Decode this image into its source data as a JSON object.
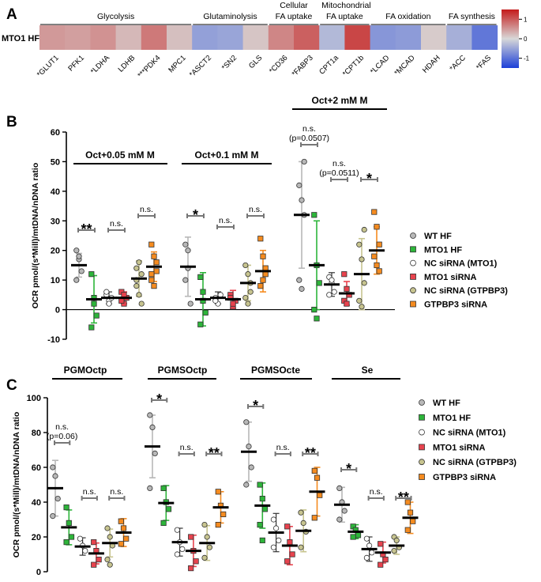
{
  "chart_data": [
    {
      "panel": "A",
      "type": "heatmap",
      "row_label": "MTO1 HF",
      "groups": [
        {
          "label": "Glycolysis",
          "genes": 6
        },
        {
          "label": "Glutaminolysis",
          "genes": 3
        },
        {
          "label": "Cellular FA uptake",
          "genes": 2
        },
        {
          "label": "Mitochondrial FA uptake",
          "genes": 2
        },
        {
          "label": "FA oxidation",
          "genes": 3
        },
        {
          "label": "FA synthesis",
          "genes": 2
        }
      ],
      "genes": [
        "*GLUT1",
        "PFK1",
        "*LDHA",
        "LDHB",
        "***PDK4",
        "MPC1",
        "*ASCT2",
        "*SN2",
        "GLS",
        "*CD36",
        "*FABP3",
        "CPT1a",
        "*CPT1b",
        "*LCAD",
        "*MCAD",
        "HDAH",
        "*ACC",
        "*FAS"
      ],
      "values": [
        0.5,
        0.45,
        0.55,
        0.25,
        0.75,
        0.2,
        -0.55,
        -0.5,
        0.15,
        0.65,
        0.95,
        -0.3,
        1.15,
        -0.65,
        -0.6,
        0.1,
        -0.4,
        -0.95
      ],
      "colorbar": {
        "range": [
          -1.5,
          1.5
        ],
        "ticks": [
          1,
          0,
          -1
        ]
      }
    },
    {
      "panel": "B",
      "type": "scatter",
      "ylabel": "OCR pmol/(s*Mill)/mtDNA/nDNA ratio",
      "ylim": [
        -10,
        60
      ],
      "yticks": [
        -10,
        0,
        10,
        20,
        30,
        40,
        50,
        60
      ],
      "conditions": [
        "Oct+0.05 mM M",
        "Oct+0.1 mM M",
        "Oct+2 mM M"
      ],
      "legend": [
        "WT HF",
        "MTO1 HF",
        "NC siRNA (MTO1)",
        "MTO1 siRNA",
        "NC siRNA (GTPBP3)",
        "GTPBP3 siRNA"
      ],
      "comparisons": [
        [
          "**",
          "n.s.",
          "n.s."
        ],
        [
          "*",
          "n.s.",
          "n.s."
        ],
        [
          "n.s.\n(p=0.0507)",
          "n.s.\n(p=0.0511)",
          "*"
        ]
      ],
      "series": [
        [
          {
            "name": "WT HF",
            "values": [
              20,
              17,
              13,
              10,
              18
            ],
            "mean": 15,
            "sd": 4
          },
          {
            "name": "MTO1 HF",
            "values": [
              12,
              2,
              -2,
              -6,
              4
            ],
            "mean": 3.5,
            "sd": 8
          },
          {
            "name": "NC siRNA (MTO1)",
            "values": [
              5,
              3,
              4,
              6,
              2
            ],
            "mean": 4,
            "sd": 2
          },
          {
            "name": "MTO1 siRNA",
            "values": [
              6,
              2,
              4,
              3,
              5
            ],
            "mean": 4,
            "sd": 2
          },
          {
            "name": "NC siRNA (GTPBP3)",
            "values": [
              14,
              16,
              12,
              8,
              5,
              2,
              10
            ],
            "mean": 10.5,
            "sd": 6
          },
          {
            "name": "GTPBP3 siRNA",
            "values": [
              22,
              18,
              13,
              10,
              8,
              16,
              12
            ],
            "mean": 14.5,
            "sd": 5
          }
        ],
        [
          {
            "name": "WT HF",
            "values": [
              22,
              14,
              2,
              10,
              20
            ],
            "mean": 14.5,
            "sd": 10
          },
          {
            "name": "MTO1 HF",
            "values": [
              11,
              3,
              -1,
              -5,
              6
            ],
            "mean": 3.5,
            "sd": 9
          },
          {
            "name": "NC siRNA (MTO1)",
            "values": [
              4,
              2,
              5,
              3
            ],
            "mean": 4,
            "sd": 2
          },
          {
            "name": "MTO1 siRNA",
            "values": [
              5,
              1,
              3,
              4,
              2
            ],
            "mean": 3.5,
            "sd": 3
          },
          {
            "name": "NC siRNA (GTPBP3)",
            "values": [
              15,
              12,
              9,
              4,
              2,
              6
            ],
            "mean": 9,
            "sd": 6
          },
          {
            "name": "GTPBP3 siRNA",
            "values": [
              24,
              18,
              14,
              8,
              10,
              12
            ],
            "mean": 13,
            "sd": 7
          }
        ],
        [
          {
            "name": "WT HF",
            "values": [
              42,
              37,
              32,
              10,
              7,
              50
            ],
            "mean": 32,
            "sd": 18
          },
          {
            "name": "MTO1 HF",
            "values": [
              32,
              15,
              9,
              0,
              -3
            ],
            "mean": 15,
            "sd": 15
          },
          {
            "name": "NC siRNA (MTO1)",
            "values": [
              11,
              9,
              6,
              5,
              10
            ],
            "mean": 8.5,
            "sd": 4
          },
          {
            "name": "MTO1 siRNA",
            "values": [
              12,
              7,
              5,
              3,
              2
            ],
            "mean": 5.5,
            "sd": 4
          },
          {
            "name": "NC siRNA (GTPBP3)",
            "values": [
              22,
              17,
              9,
              3,
              1,
              27
            ],
            "mean": 12,
            "sd": 12
          },
          {
            "name": "GTPBP3 siRNA",
            "values": [
              33,
              28,
              22,
              18,
              15,
              13
            ],
            "mean": 20,
            "sd": 8
          }
        ]
      ]
    },
    {
      "panel": "C",
      "type": "scatter",
      "ylabel": "OCR pmol/(s*Mill)/mtDNA/nDNA ratio",
      "ylim": [
        0,
        100
      ],
      "yticks": [
        0,
        20,
        40,
        60,
        80,
        100
      ],
      "conditions": [
        "PGMOctp",
        "PGMSOctp",
        "PGMSOcte",
        "Se"
      ],
      "legend": [
        "WT HF",
        "MTO1 HF",
        "NC siRNA (MTO1)",
        "MTO1 siRNA",
        "NC siRNA (GTPBP3)",
        "GTPBP3 siRNA"
      ],
      "comparisons": [
        [
          "n.s.\n(p=0.06)",
          "n.s.",
          "n.s."
        ],
        [
          "*",
          "n.s.",
          "**"
        ],
        [
          "*",
          "n.s.",
          "**"
        ],
        [
          "*",
          "n.s.",
          "**"
        ]
      ],
      "series": [
        [
          {
            "name": "WT HF",
            "values": [
              60,
              55,
              42,
              32
            ],
            "mean": 48,
            "sd": 16
          },
          {
            "name": "MTO1 HF",
            "values": [
              37,
              28,
              20,
              17
            ],
            "mean": 25.5,
            "sd": 10
          },
          {
            "name": "NC siRNA (MTO1)",
            "values": [
              19,
              15,
              12
            ],
            "mean": 14.5,
            "sd": 5
          },
          {
            "name": "MTO1 siRNA",
            "values": [
              17,
              12,
              7,
              4
            ],
            "mean": 10.5,
            "sd": 6
          },
          {
            "name": "NC siRNA (GTPBP3)",
            "values": [
              25,
              20,
              15,
              7,
              4
            ],
            "mean": 16.5,
            "sd": 8
          },
          {
            "name": "GTPBP3 siRNA",
            "values": [
              29,
              25,
              19,
              16
            ],
            "mean": 22.5,
            "sd": 8
          }
        ],
        [
          {
            "name": "WT HF",
            "values": [
              90,
              83,
              68,
              48
            ],
            "mean": 72,
            "sd": 18
          },
          {
            "name": "MTO1 HF",
            "values": [
              48,
              40,
              36,
              28
            ],
            "mean": 39.5,
            "sd": 10
          },
          {
            "name": "NC siRNA (MTO1)",
            "values": [
              24,
              17,
              13,
              10
            ],
            "mean": 17,
            "sd": 8
          },
          {
            "name": "MTO1 siRNA",
            "values": [
              20,
              12,
              6,
              2
            ],
            "mean": 12,
            "sd": 9
          },
          {
            "name": "NC siRNA (GTPBP3)",
            "values": [
              27,
              20,
              14,
              8
            ],
            "mean": 16.5,
            "sd": 10
          },
          {
            "name": "GTPBP3 siRNA",
            "values": [
              46,
              38,
              33,
              27
            ],
            "mean": 37,
            "sd": 9
          }
        ],
        [
          {
            "name": "WT HF",
            "values": [
              86,
              72,
              60,
              50
            ],
            "mean": 69,
            "sd": 17
          },
          {
            "name": "MTO1 HF",
            "values": [
              50,
              42,
              36,
              27,
              18
            ],
            "mean": 38,
            "sd": 13
          },
          {
            "name": "NC siRNA (MTO1)",
            "values": [
              30,
              25,
              18,
              14
            ],
            "mean": 22.5,
            "sd": 11
          },
          {
            "name": "MTO1 siRNA",
            "values": [
              26,
              17,
              10,
              6
            ],
            "mean": 15,
            "sd": 11
          },
          {
            "name": "NC siRNA (GTPBP3)",
            "values": [
              34,
              28,
              23,
              14
            ],
            "mean": 23.5,
            "sd": 12
          },
          {
            "name": "GTPBP3 siRNA",
            "values": [
              58,
              54,
              44,
              31
            ],
            "mean": 46,
            "sd": 14
          }
        ],
        [
          {
            "name": "WT HF",
            "values": [
              48,
              40,
              35,
              30
            ],
            "mean": 38.5,
            "sd": 10
          },
          {
            "name": "MTO1 HF",
            "values": [
              26,
              24,
              21,
              20
            ],
            "mean": 23,
            "sd": 4
          },
          {
            "name": "NC siRNA (MTO1)",
            "values": [
              19,
              15,
              11,
              8
            ],
            "mean": 13,
            "sd": 7
          },
          {
            "name": "MTO1 siRNA",
            "values": [
              16,
              10,
              7,
              4
            ],
            "mean": 11,
            "sd": 6
          },
          {
            "name": "NC siRNA (GTPBP3)",
            "values": [
              20,
              18,
              14,
              12
            ],
            "mean": 15,
            "sd": 5
          },
          {
            "name": "GTPBP3 siRNA",
            "values": [
              40,
              34,
              29,
              24
            ],
            "mean": 31,
            "sd": 9
          }
        ]
      ]
    }
  ],
  "panel_labels": {
    "a": "A",
    "b": "B",
    "c": "C"
  },
  "panel_b_extra": {
    "top_condition": "Oct+2 mM M"
  },
  "colors": {
    "series": [
      "#b8b8b8",
      "#2db53a",
      "#ffffff",
      "#e8434e",
      "#c7c48f",
      "#f58b1f"
    ],
    "heat_low": "#1c3fd8",
    "heat_mid": "#d8d8d8",
    "heat_high": "#c41a1a"
  }
}
